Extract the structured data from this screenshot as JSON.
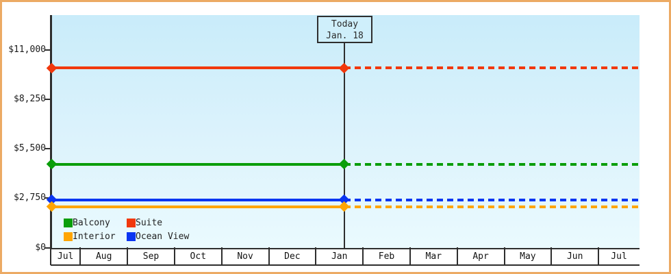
{
  "chart_data": {
    "type": "line",
    "title": "",
    "description": "Cabin price lines per category; solid history up to today, dashed projection after today",
    "x_axis": {
      "months": [
        "Jul",
        "Aug",
        "Sep",
        "Oct",
        "Nov",
        "Dec",
        "Jan",
        "Feb",
        "Mar",
        "Apr",
        "May",
        "Jun",
        "Jul"
      ]
    },
    "y_axis": {
      "min": 0,
      "max": 11000,
      "tick_labels": [
        "$0",
        "$2,750",
        "$5,500",
        "$8,250",
        "$11,000"
      ],
      "tick_values": [
        0,
        2750,
        5500,
        8250,
        11000
      ],
      "grid": false
    },
    "series": [
      {
        "name": "Suite",
        "color": "#f1380d",
        "value": 10000,
        "style": "solid-then-dashed"
      },
      {
        "name": "Balcony",
        "color": "#0a9e0a",
        "value": 4650,
        "style": "solid-then-dashed"
      },
      {
        "name": "Ocean View",
        "color": "#0a35f2",
        "value": 2650,
        "style": "solid-then-dashed"
      },
      {
        "name": "Interior",
        "color": "#ffa502",
        "value": 2280,
        "style": "solid-then-dashed"
      }
    ],
    "today_marker": {
      "title": "Today",
      "date": "Jan. 18",
      "month": "Jan",
      "fraction_of_month": 0.6
    },
    "legend": {
      "position": "bottom-left-inside",
      "rows": [
        [
          "Balcony",
          "Suite"
        ],
        [
          "Interior",
          "Ocean View"
        ]
      ]
    },
    "frame_border_color": "#ecaa64",
    "plot_background_top": "#c9ecfa",
    "plot_background_bottom": "#eafafe",
    "axis_color": "#2e2e2e"
  }
}
